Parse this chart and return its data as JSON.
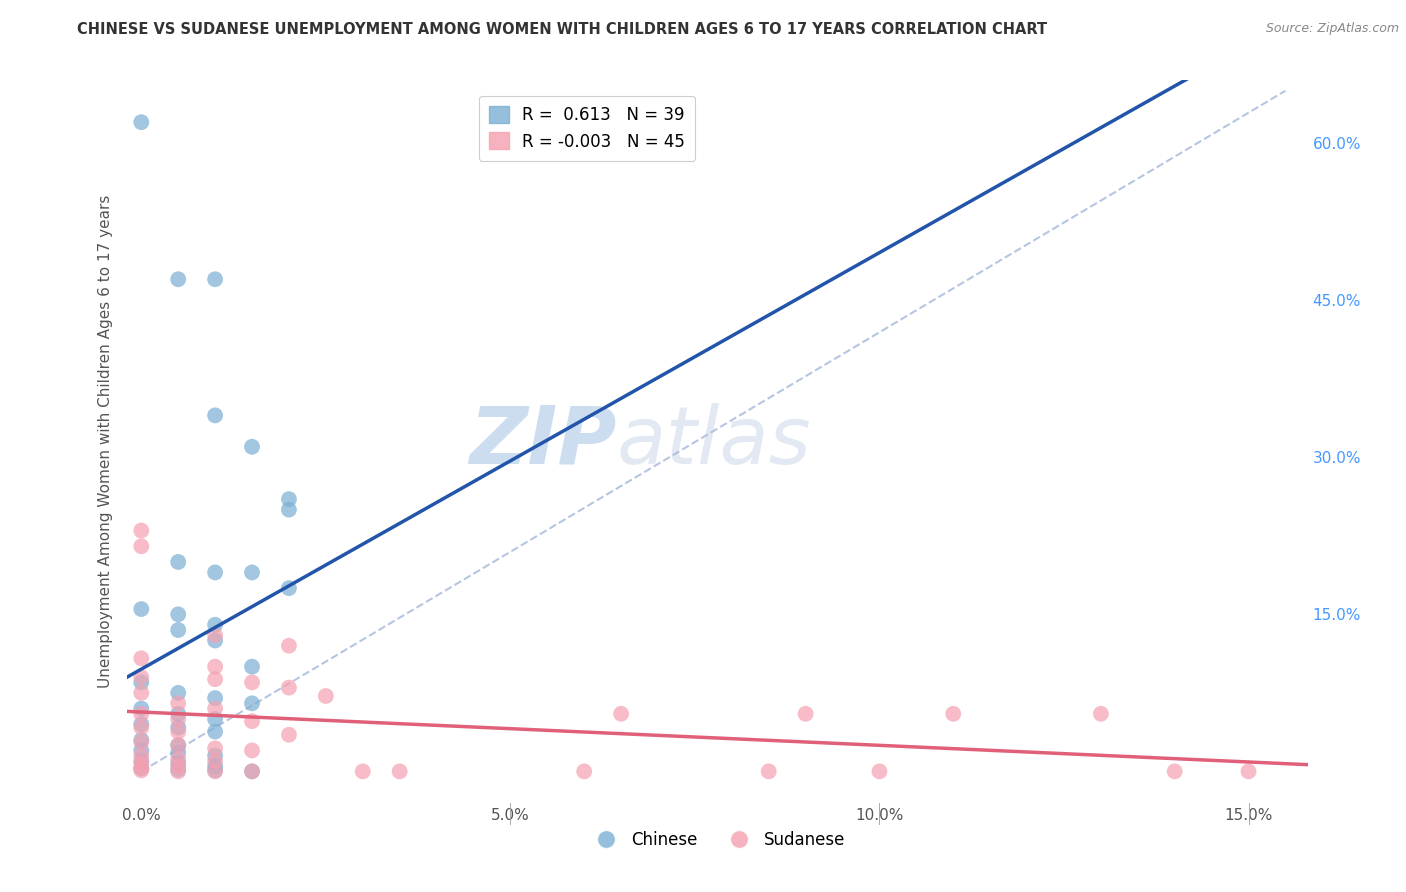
{
  "title": "CHINESE VS SUDANESE UNEMPLOYMENT AMONG WOMEN WITH CHILDREN AGES 6 TO 17 YEARS CORRELATION CHART",
  "source": "Source: ZipAtlas.com",
  "ylabel": "Unemployment Among Women with Children Ages 6 to 17 years",
  "xlim": [
    -0.002,
    0.158
  ],
  "ylim": [
    -0.03,
    0.66
  ],
  "xticks": [
    0.0,
    0.05,
    0.1,
    0.15
  ],
  "xticklabels": [
    "0.0%",
    "5.0%",
    "10.0%",
    "15.0%"
  ],
  "yticks_right": [
    0.15,
    0.3,
    0.45,
    0.6
  ],
  "yticklabels_right": [
    "15.0%",
    "30.0%",
    "45.0%",
    "60.0%"
  ],
  "chinese_color": "#7BAFD4",
  "sudanese_color": "#F4A0B0",
  "chinese_line_color": "#2255AA",
  "sudanese_line_color": "#E0607A",
  "diag_color": "#AABBDD",
  "chinese_R": 0.613,
  "chinese_N": 39,
  "sudanese_R": -0.003,
  "sudanese_N": 45,
  "watermark_zip": "ZIP",
  "watermark_atlas": "atlas",
  "background_color": "#FFFFFF",
  "grid_color": "#CCCCCC",
  "chinese_scatter": [
    [
      0.0,
      0.62
    ],
    [
      0.005,
      0.47
    ],
    [
      0.01,
      0.47
    ],
    [
      0.01,
      0.34
    ],
    [
      0.015,
      0.31
    ],
    [
      0.02,
      0.26
    ],
    [
      0.02,
      0.25
    ],
    [
      0.005,
      0.2
    ],
    [
      0.01,
      0.19
    ],
    [
      0.015,
      0.19
    ],
    [
      0.02,
      0.175
    ],
    [
      0.0,
      0.155
    ],
    [
      0.005,
      0.15
    ],
    [
      0.01,
      0.14
    ],
    [
      0.005,
      0.135
    ],
    [
      0.01,
      0.125
    ],
    [
      0.015,
      0.1
    ],
    [
      0.0,
      0.085
    ],
    [
      0.005,
      0.075
    ],
    [
      0.01,
      0.07
    ],
    [
      0.015,
      0.065
    ],
    [
      0.0,
      0.06
    ],
    [
      0.005,
      0.055
    ],
    [
      0.01,
      0.05
    ],
    [
      0.0,
      0.045
    ],
    [
      0.005,
      0.042
    ],
    [
      0.01,
      0.038
    ],
    [
      0.0,
      0.03
    ],
    [
      0.005,
      0.025
    ],
    [
      0.0,
      0.02
    ],
    [
      0.005,
      0.018
    ],
    [
      0.01,
      0.015
    ],
    [
      0.0,
      0.01
    ],
    [
      0.005,
      0.008
    ],
    [
      0.01,
      0.005
    ],
    [
      0.0,
      0.003
    ],
    [
      0.005,
      0.002
    ],
    [
      0.01,
      0.001
    ],
    [
      0.015,
      0.0
    ]
  ],
  "sudanese_scatter": [
    [
      0.0,
      0.23
    ],
    [
      0.0,
      0.215
    ],
    [
      0.01,
      0.13
    ],
    [
      0.02,
      0.12
    ],
    [
      0.0,
      0.108
    ],
    [
      0.01,
      0.1
    ],
    [
      0.0,
      0.09
    ],
    [
      0.01,
      0.088
    ],
    [
      0.015,
      0.085
    ],
    [
      0.02,
      0.08
    ],
    [
      0.0,
      0.075
    ],
    [
      0.025,
      0.072
    ],
    [
      0.005,
      0.065
    ],
    [
      0.01,
      0.06
    ],
    [
      0.0,
      0.055
    ],
    [
      0.005,
      0.05
    ],
    [
      0.015,
      0.048
    ],
    [
      0.0,
      0.042
    ],
    [
      0.005,
      0.038
    ],
    [
      0.02,
      0.035
    ],
    [
      0.0,
      0.028
    ],
    [
      0.005,
      0.025
    ],
    [
      0.01,
      0.022
    ],
    [
      0.015,
      0.02
    ],
    [
      0.0,
      0.015
    ],
    [
      0.005,
      0.012
    ],
    [
      0.01,
      0.01
    ],
    [
      0.0,
      0.008
    ],
    [
      0.005,
      0.005
    ],
    [
      0.0,
      0.003
    ],
    [
      0.0,
      0.001
    ],
    [
      0.005,
      0.0
    ],
    [
      0.01,
      0.0
    ],
    [
      0.015,
      0.0
    ],
    [
      0.03,
      0.0
    ],
    [
      0.035,
      0.0
    ],
    [
      0.06,
      0.0
    ],
    [
      0.065,
      0.055
    ],
    [
      0.085,
      0.0
    ],
    [
      0.09,
      0.055
    ],
    [
      0.1,
      0.0
    ],
    [
      0.11,
      0.055
    ],
    [
      0.13,
      0.055
    ],
    [
      0.14,
      0.0
    ],
    [
      0.15,
      0.0
    ]
  ]
}
